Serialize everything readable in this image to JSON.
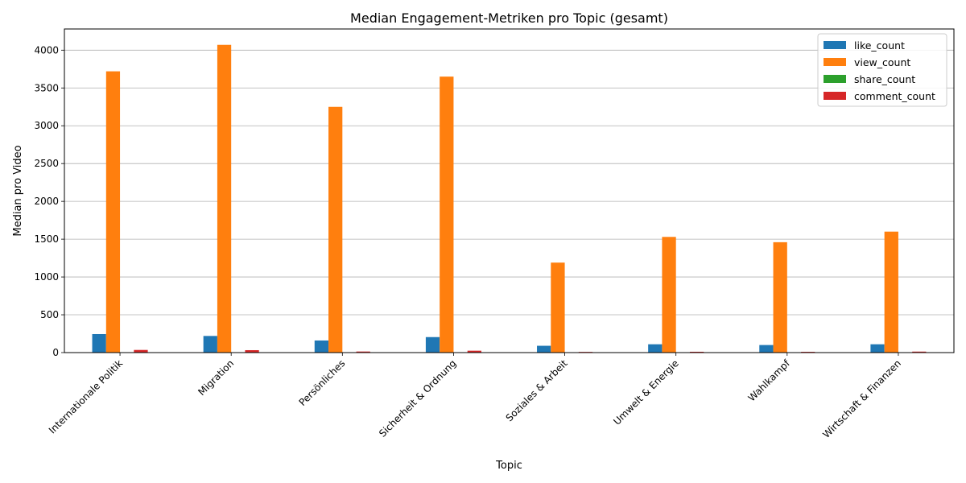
{
  "chart_data": {
    "type": "bar",
    "title": "Median Engagement-Metriken pro Topic (gesamt)",
    "xlabel": "Topic",
    "ylabel": "Median pro Video",
    "ylim": [
      0,
      4280
    ],
    "yticks": [
      0,
      500,
      1000,
      1500,
      2000,
      2500,
      3000,
      3500,
      4000
    ],
    "grid": "y",
    "legend_position": "top-right",
    "categories": [
      "Internationale Politik",
      "Migration",
      "Persönliches",
      "Sicherheit & Ordnung",
      "Soziales & Arbeit",
      "Umwelt & Energie",
      "Wahlkampf",
      "Wirtschaft & Finanzen"
    ],
    "series": [
      {
        "name": "like_count",
        "color": "#1f77b4",
        "values": [
          245,
          220,
          160,
          205,
          90,
          110,
          100,
          110
        ]
      },
      {
        "name": "view_count",
        "color": "#ff7f0e",
        "values": [
          3720,
          4070,
          3250,
          3650,
          1190,
          1530,
          1460,
          1600
        ]
      },
      {
        "name": "share_count",
        "color": "#2ca02c",
        "values": [
          4,
          4,
          2,
          3,
          1,
          2,
          2,
          2
        ]
      },
      {
        "name": "comment_count",
        "color": "#d62728",
        "values": [
          35,
          32,
          14,
          25,
          9,
          11,
          10,
          13
        ]
      }
    ]
  }
}
